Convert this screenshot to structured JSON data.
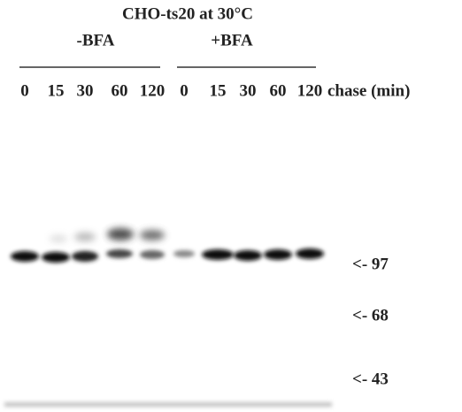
{
  "header": {
    "title": "CHO-ts20 at 30°C",
    "groups": [
      "-BFA",
      "+BFA"
    ]
  },
  "lanes": [
    "0",
    "15",
    "30",
    "60",
    "120",
    "0",
    "15",
    "30",
    "60",
    "120"
  ],
  "axis_label": "chase (min)",
  "markers": [
    "<- 97",
    "<- 68",
    "<- 43"
  ]
}
